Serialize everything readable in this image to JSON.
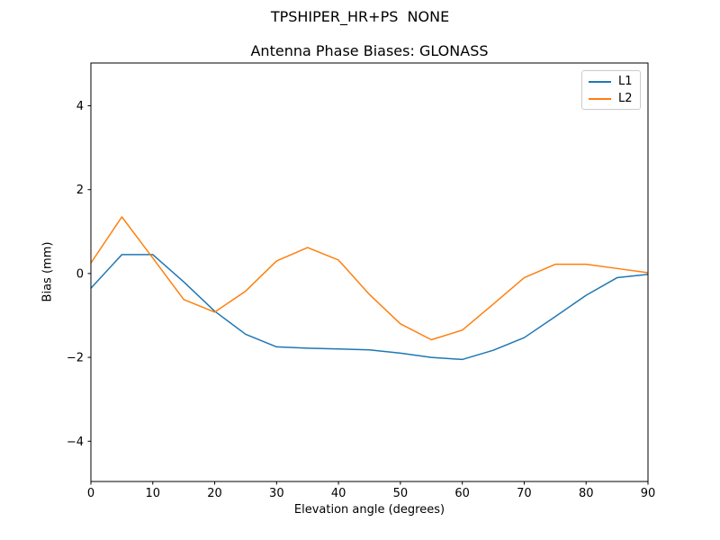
{
  "figure": {
    "suptitle": "TPSHIPER_HR+PS  NONE"
  },
  "chart_data": {
    "type": "line",
    "title": "Antenna Phase Biases: GLONASS",
    "xlabel": "Elevation angle (degrees)",
    "ylabel": "Bias (mm)",
    "xlim": [
      0,
      90
    ],
    "ylim": [
      -4.96,
      5.02
    ],
    "xticks": [
      0,
      10,
      20,
      30,
      40,
      50,
      60,
      70,
      80,
      90
    ],
    "yticks": [
      -4,
      -2,
      0,
      2,
      4
    ],
    "grid": false,
    "legend_position": "upper right",
    "x": [
      0,
      5,
      10,
      15,
      20,
      25,
      30,
      35,
      40,
      45,
      50,
      55,
      60,
      65,
      70,
      75,
      80,
      85,
      90
    ],
    "series": [
      {
        "name": "L1",
        "color": "#1f77b4",
        "values": [
          -0.35,
          0.45,
          0.45,
          -0.2,
          -0.9,
          -1.45,
          -1.75,
          -1.78,
          -1.8,
          -1.82,
          -1.9,
          -2.0,
          -2.05,
          -1.83,
          -1.53,
          -1.03,
          -0.52,
          -0.1,
          -0.02
        ]
      },
      {
        "name": "L2",
        "color": "#ff7f0e",
        "values": [
          0.25,
          1.35,
          0.37,
          -0.62,
          -0.92,
          -0.42,
          0.3,
          0.62,
          0.32,
          -0.5,
          -1.2,
          -1.58,
          -1.35,
          -0.73,
          -0.1,
          0.22,
          0.22,
          0.12,
          0.02
        ]
      }
    ]
  }
}
